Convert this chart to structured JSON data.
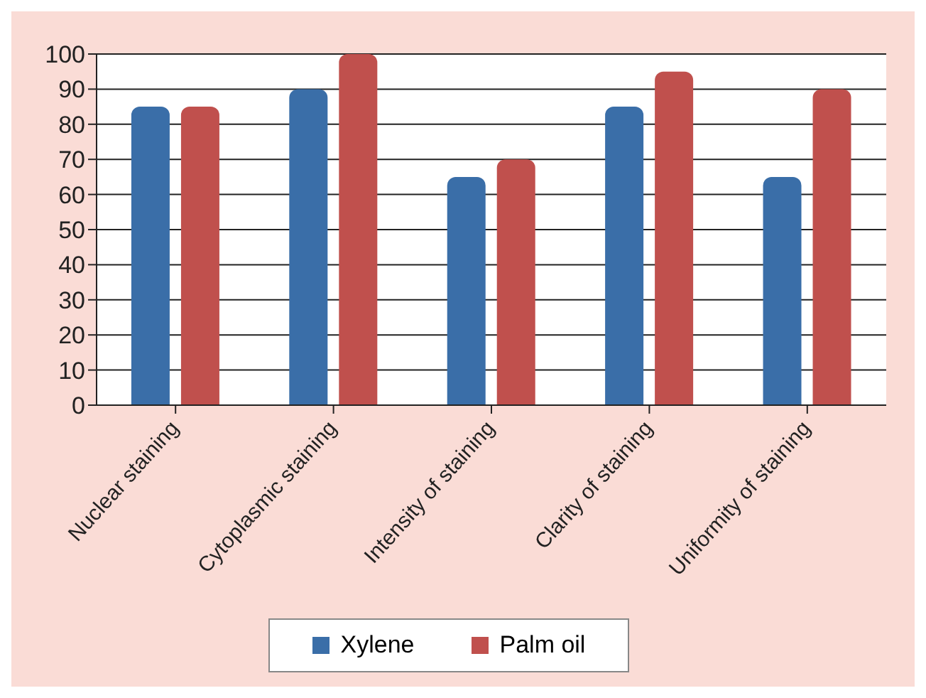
{
  "chart_data": {
    "type": "bar",
    "categories": [
      "Nuclear staining",
      "Cytoplasmic staining",
      "Intensity of staining",
      "Clarity of staining",
      "Uniformity of staining"
    ],
    "series": [
      {
        "name": "Xylene",
        "color": "#3a6ea8",
        "values": [
          85,
          90,
          65,
          85,
          65
        ]
      },
      {
        "name": "Palm oil",
        "color": "#c0504d",
        "values": [
          85,
          100,
          70,
          95,
          90
        ]
      }
    ],
    "ylim": [
      0,
      100
    ],
    "yticks": [
      0,
      10,
      20,
      30,
      40,
      50,
      60,
      70,
      80,
      90,
      100
    ],
    "grid": "y",
    "legend": "bottom"
  }
}
